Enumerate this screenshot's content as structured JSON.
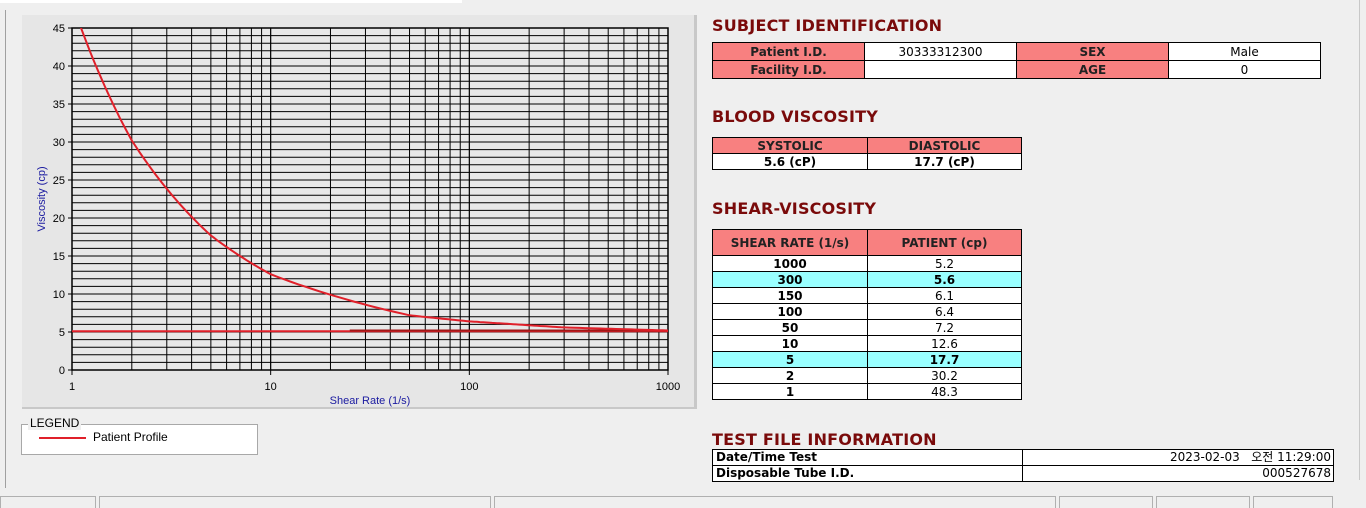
{
  "chart_data": {
    "type": "line",
    "xlabel": "Shear Rate (1/s)",
    "ylabel": "Viscosity (cp)",
    "xscale": "log",
    "xlim": [
      1,
      1000
    ],
    "ylim": [
      0,
      45
    ],
    "xticks": [
      "1",
      "10",
      "100",
      "1000"
    ],
    "yticks": [
      "0",
      "5",
      "10",
      "15",
      "20",
      "25",
      "30",
      "35",
      "40",
      "45"
    ],
    "grid": true,
    "legend_position": "bottom-left",
    "series": [
      {
        "name": "Patient Profile",
        "color": "#e0202a",
        "x": [
          1,
          2,
          5,
          10,
          50,
          100,
          150,
          300,
          1000
        ],
        "y": [
          48.3,
          30.2,
          17.7,
          12.6,
          7.2,
          6.4,
          6.1,
          5.6,
          5.2
        ]
      }
    ],
    "reference_lines": [
      {
        "y": 5.1,
        "x": [
          1,
          1000
        ],
        "color": "#e0202a"
      },
      {
        "y": 5.2,
        "x": [
          25,
          1000
        ],
        "color": "#a01818"
      }
    ]
  },
  "legend": {
    "title": "LEGEND",
    "items": [
      "Patient Profile"
    ]
  },
  "subject": {
    "title": "SUBJECT IDENTIFICATION",
    "patient_id_label": "Patient I.D.",
    "patient_id": "30333312300",
    "sex_label": "SEX",
    "sex": "Male",
    "facility_id_label": "Facility I.D.",
    "facility_id": "",
    "age_label": "AGE",
    "age": "0"
  },
  "blood": {
    "title": "BLOOD VISCOSITY",
    "systolic_label": "SYSTOLIC",
    "diastolic_label": "DIASTOLIC",
    "systolic": "5.6 (cP)",
    "diastolic": "17.7 (cP)"
  },
  "shear": {
    "title": "SHEAR-VISCOSITY",
    "col_rate": "SHEAR RATE (1/s)",
    "col_patient": "PATIENT (cp)",
    "highlight_color": "#99ffff",
    "rows": [
      {
        "rate": "1000",
        "value": "5.2",
        "highlight": false
      },
      {
        "rate": "300",
        "value": "5.6",
        "highlight": true
      },
      {
        "rate": "150",
        "value": "6.1",
        "highlight": false
      },
      {
        "rate": "100",
        "value": "6.4",
        "highlight": false
      },
      {
        "rate": "50",
        "value": "7.2",
        "highlight": false
      },
      {
        "rate": "10",
        "value": "12.6",
        "highlight": false
      },
      {
        "rate": "5",
        "value": "17.7",
        "highlight": true
      },
      {
        "rate": "2",
        "value": "30.2",
        "highlight": false
      },
      {
        "rate": "1",
        "value": "48.3",
        "highlight": false
      }
    ]
  },
  "testfile": {
    "title": "TEST FILE INFORMATION",
    "datetime_label": "Date/Time Test",
    "datetime": "2023-02-03   오전 11:29:00",
    "tube_label": "Disposable Tube I.D.",
    "tube": "000527678"
  },
  "colors": {
    "header_fill": "#f88080",
    "title": "#7a0a0a",
    "curve": "#e0202a"
  }
}
